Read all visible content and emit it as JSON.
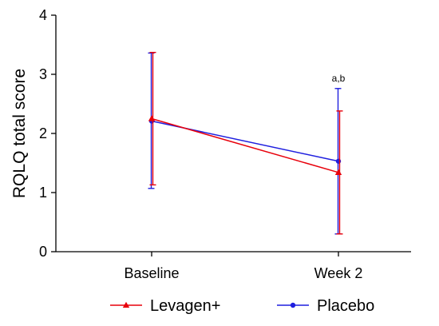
{
  "chart_data": {
    "type": "line",
    "title": "",
    "xlabel": "",
    "ylabel": "RQLQ total score",
    "categories": [
      "Baseline",
      "Week 2"
    ],
    "ylim": [
      0,
      4
    ],
    "yticks": [
      "0",
      "1",
      "2",
      "3",
      "4"
    ],
    "grid": false,
    "legend_position": "bottom",
    "series": [
      {
        "name": "Levagen+",
        "color": "#e8000b",
        "marker": "triangle",
        "values": [
          2.25,
          1.34
        ],
        "error_upper": [
          3.37,
          2.38
        ],
        "error_lower": [
          1.13,
          0.3
        ]
      },
      {
        "name": "Placebo",
        "color": "#1f1fdf",
        "marker": "circle",
        "values": [
          2.21,
          1.53
        ],
        "error_upper": [
          3.36,
          2.76
        ],
        "error_lower": [
          1.07,
          0.3
        ]
      }
    ],
    "annotations": [
      {
        "category": "Week 2",
        "text": "a,b",
        "y": 2.88
      }
    ]
  }
}
